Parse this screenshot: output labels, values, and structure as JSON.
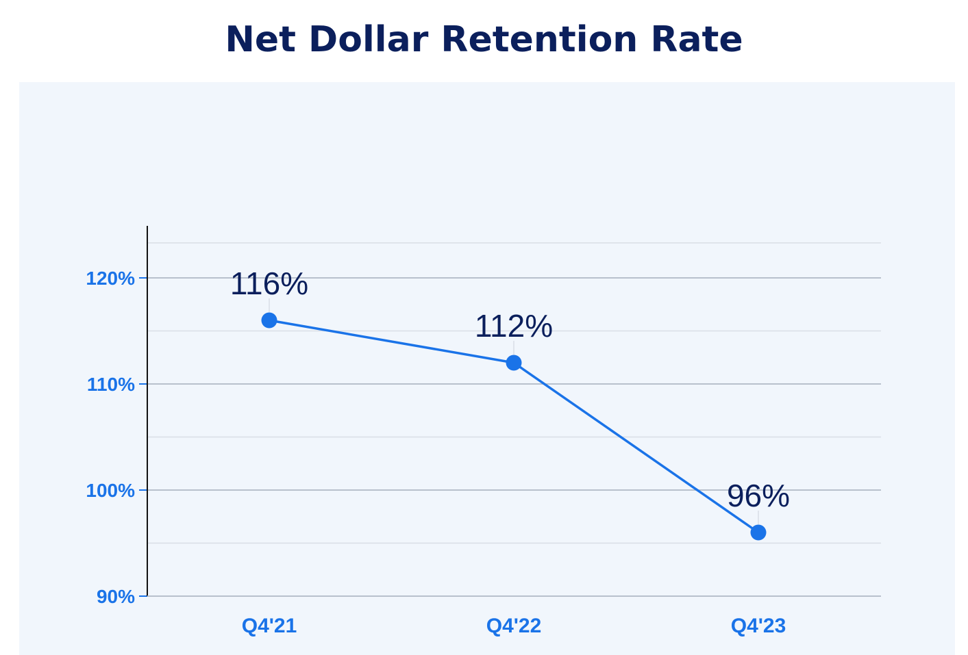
{
  "title": "Net Dollar Retention Rate",
  "colors": {
    "title": "#0b1f5c",
    "accent": "#1a73e8",
    "panel": "#f1f6fc",
    "major_grid": "#b8c0cc",
    "minor_grid": "#d9dee6"
  },
  "chart_data": {
    "type": "line",
    "categories": [
      "Q4'21",
      "Q4'22",
      "Q4'23"
    ],
    "series": [
      {
        "values": [
          116,
          112,
          96
        ],
        "labels": [
          "116%",
          "112%",
          "96%"
        ]
      }
    ],
    "ylim": [
      90,
      125
    ],
    "yticks": [
      90,
      100,
      110,
      120
    ],
    "ytick_labels": [
      "90%",
      "100%",
      "110%",
      "120%"
    ],
    "minor_gridlines": [
      95,
      105,
      115,
      123.3
    ],
    "grid": true,
    "legend": "none"
  }
}
